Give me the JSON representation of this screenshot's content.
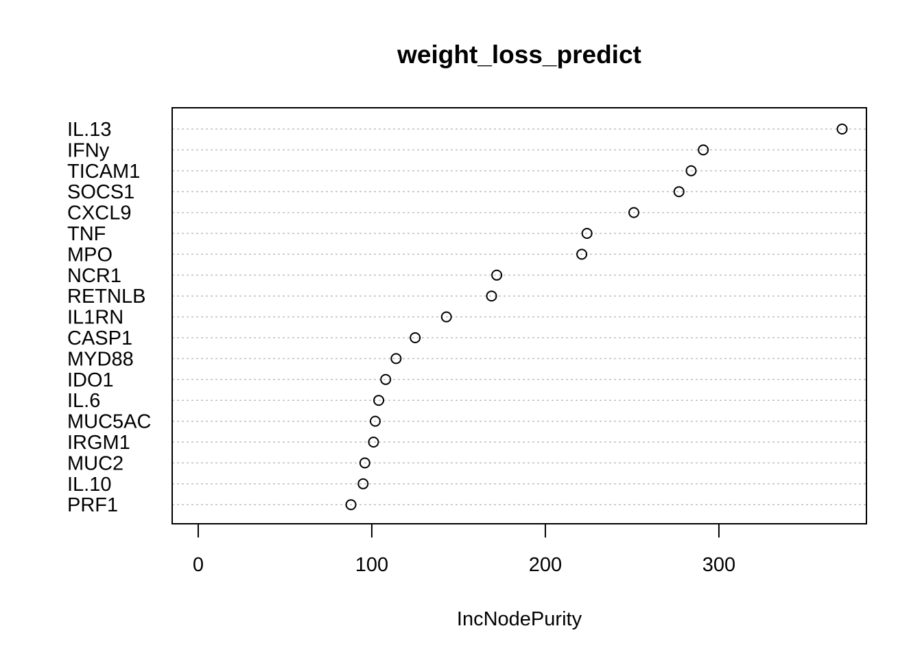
{
  "chart_data": {
    "type": "scatter",
    "title": "weight_loss_predict",
    "xlabel": "IncNodePurity",
    "ylabel": "",
    "xlim": [
      -15,
      385
    ],
    "xticks": [
      0,
      100,
      200,
      300
    ],
    "grid": "horizontal dotted",
    "categories": [
      "IL.13",
      "IFNy",
      "TICAM1",
      "SOCS1",
      "CXCL9",
      "TNF",
      "MPO",
      "NCR1",
      "RETNLB",
      "IL1RN",
      "CASP1",
      "MYD88",
      "IDO1",
      "IL.6",
      "MUC5AC",
      "IRGM1",
      "MUC2",
      "IL.10",
      "PRF1"
    ],
    "values": [
      371,
      291,
      284,
      277,
      251,
      224,
      221,
      172,
      169,
      143,
      125,
      114,
      108,
      104,
      102,
      101,
      96,
      95,
      88
    ]
  }
}
